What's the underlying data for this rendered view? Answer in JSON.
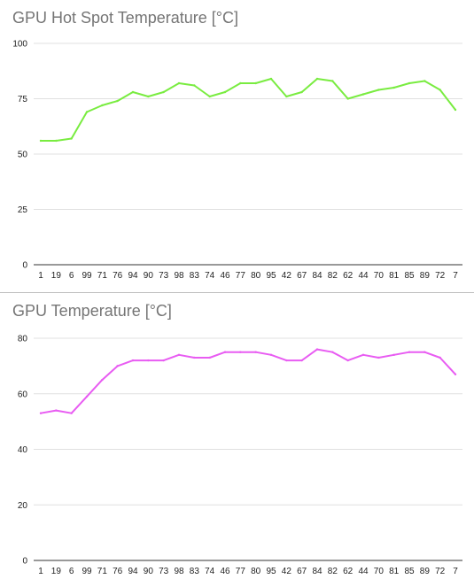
{
  "chart_data": [
    {
      "type": "line",
      "title": "GPU Hot Spot Temperature [°C]",
      "xlabel": "",
      "ylabel": "",
      "categories": [
        "1",
        "19",
        "6",
        "99",
        "71",
        "76",
        "94",
        "90",
        "73",
        "98",
        "83",
        "74",
        "46",
        "77",
        "80",
        "95",
        "42",
        "67",
        "84",
        "82",
        "62",
        "44",
        "70",
        "81",
        "85",
        "89",
        "72",
        "7"
      ],
      "ylim": [
        0,
        100
      ],
      "yticks": [
        0,
        25,
        50,
        75,
        100
      ],
      "grid": true,
      "series": [
        {
          "color": "#79ec40",
          "values": [
            56,
            56,
            57,
            69,
            72,
            74,
            78,
            76,
            78,
            82,
            81,
            76,
            78,
            82,
            82,
            84,
            76,
            78,
            84,
            83,
            75,
            77,
            79,
            80,
            82,
            83,
            79,
            70
          ]
        }
      ]
    },
    {
      "type": "line",
      "title": "GPU Temperature [°C]",
      "xlabel": "",
      "ylabel": "",
      "categories": [
        "1",
        "19",
        "6",
        "99",
        "71",
        "76",
        "94",
        "90",
        "73",
        "98",
        "83",
        "74",
        "46",
        "77",
        "80",
        "95",
        "42",
        "67",
        "84",
        "82",
        "62",
        "44",
        "70",
        "81",
        "85",
        "89",
        "72",
        "7"
      ],
      "ylim": [
        0,
        80
      ],
      "yticks": [
        0,
        20,
        40,
        60,
        80
      ],
      "grid": true,
      "series": [
        {
          "color": "#e85cf2",
          "values": [
            53,
            54,
            53,
            59,
            65,
            70,
            72,
            72,
            72,
            74,
            73,
            73,
            75,
            75,
            75,
            74,
            72,
            72,
            76,
            75,
            72,
            74,
            73,
            74,
            75,
            75,
            73,
            67
          ]
        }
      ]
    }
  ]
}
